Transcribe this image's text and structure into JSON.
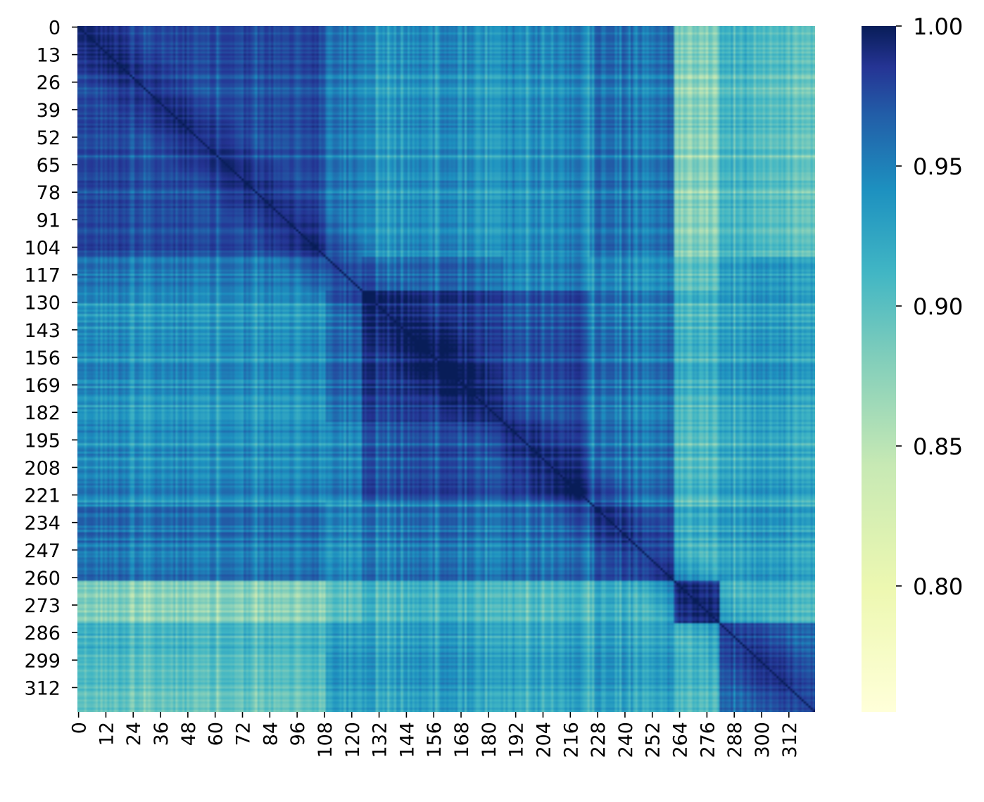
{
  "chart_data": {
    "type": "heatmap",
    "title": "",
    "xlabel": "",
    "ylabel": "",
    "size": 324,
    "x_tick_labels": [
      "0",
      "12",
      "24",
      "36",
      "48",
      "60",
      "72",
      "84",
      "96",
      "108",
      "120",
      "132",
      "144",
      "156",
      "168",
      "180",
      "192",
      "204",
      "216",
      "228",
      "240",
      "252",
      "264",
      "276",
      "288",
      "300",
      "312"
    ],
    "y_tick_labels": [
      "0",
      "13",
      "26",
      "39",
      "52",
      "65",
      "78",
      "91",
      "104",
      "117",
      "130",
      "143",
      "156",
      "169",
      "182",
      "195",
      "208",
      "221",
      "234",
      "247",
      "260",
      "273",
      "286",
      "299",
      "312"
    ],
    "colorbar": {
      "ticks": [
        "0.80",
        "0.85",
        "0.90",
        "0.95",
        "1.00"
      ],
      "min": 0.755,
      "max": 1.0,
      "colormap": "YlGnBu"
    },
    "block_structure": [
      {
        "range": [
          0,
          109
        ],
        "level": 0.955
      },
      {
        "range": [
          109,
          125
        ],
        "level": 0.93
      },
      {
        "range": [
          125,
          187
        ],
        "level": 0.975
      },
      {
        "range": [
          187,
          225
        ],
        "level": 0.965
      },
      {
        "range": [
          225,
          262
        ],
        "level": 0.95
      },
      {
        "range": [
          262,
          282
        ],
        "level": 0.96
      },
      {
        "range": [
          282,
          324
        ],
        "level": 0.94
      }
    ],
    "notes": "Symmetric correlation matrix; diagonal = 1.00; off-block values mostly 0.85-0.93 with light streaks near 0.78-0.82."
  }
}
